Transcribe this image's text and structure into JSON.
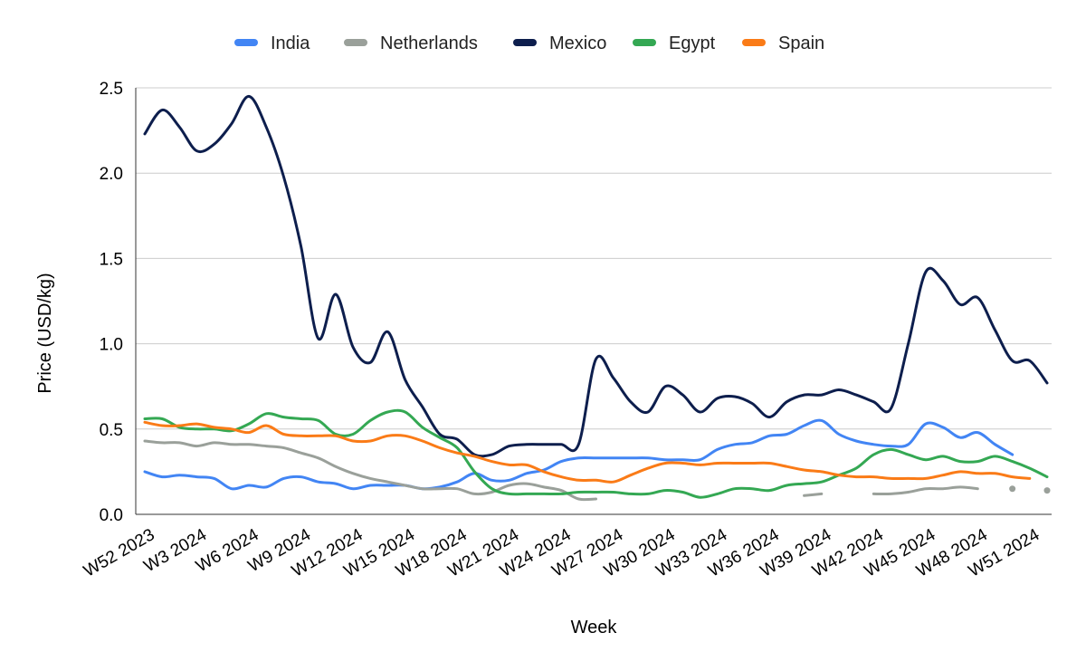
{
  "chart_data": {
    "type": "line",
    "title": "",
    "xlabel": "Week",
    "ylabel": "Price (USD/kg)",
    "ylim": [
      0,
      2.5
    ],
    "yticks": [
      0.0,
      0.5,
      1.0,
      1.5,
      2.0,
      2.5
    ],
    "ytick_labels": [
      "0.0",
      "0.5",
      "1.0",
      "1.5",
      "2.0",
      "2.5"
    ],
    "grid": true,
    "legend_position": "top",
    "categories": [
      "W52 2023",
      "W1 2024",
      "W2 2024",
      "W3 2024",
      "W4 2024",
      "W5 2024",
      "W6 2024",
      "W7 2024",
      "W8 2024",
      "W9 2024",
      "W10 2024",
      "W11 2024",
      "W12 2024",
      "W13 2024",
      "W14 2024",
      "W15 2024",
      "W16 2024",
      "W17 2024",
      "W18 2024",
      "W19 2024",
      "W20 2024",
      "W21 2024",
      "W22 2024",
      "W23 2024",
      "W24 2024",
      "W25 2024",
      "W26 2024",
      "W27 2024",
      "W28 2024",
      "W29 2024",
      "W30 2024",
      "W31 2024",
      "W32 2024",
      "W33 2024",
      "W34 2024",
      "W35 2024",
      "W36 2024",
      "W37 2024",
      "W38 2024",
      "W39 2024",
      "W40 2024",
      "W41 2024",
      "W42 2024",
      "W43 2024",
      "W44 2024",
      "W45 2024",
      "W46 2024",
      "W47 2024",
      "W48 2024",
      "W49 2024",
      "W50 2024",
      "W51 2024",
      "W52 2024"
    ],
    "xtick_labels": [
      "W52 2023",
      "W3 2024",
      "W6 2024",
      "W9 2024",
      "W12 2024",
      "W15 2024",
      "W18 2024",
      "W21 2024",
      "W24 2024",
      "W27 2024",
      "W30 2024",
      "W33 2024",
      "W36 2024",
      "W39 2024",
      "W42 2024",
      "W45 2024",
      "W48 2024",
      "W51 2024"
    ],
    "series": [
      {
        "name": "India",
        "color": "#4285f4",
        "values": [
          0.25,
          0.22,
          0.23,
          0.22,
          0.21,
          0.15,
          0.17,
          0.16,
          0.21,
          0.22,
          0.19,
          0.18,
          0.15,
          0.17,
          0.17,
          0.17,
          0.15,
          0.16,
          0.19,
          0.24,
          0.2,
          0.2,
          0.24,
          0.26,
          0.31,
          0.33,
          0.33,
          0.33,
          0.33,
          0.33,
          0.32,
          0.32,
          0.32,
          0.38,
          0.41,
          0.42,
          0.46,
          0.47,
          0.52,
          0.55,
          0.47,
          0.43,
          0.41,
          0.4,
          0.41,
          0.53,
          0.51,
          0.45,
          0.48,
          0.41,
          0.35,
          null,
          null
        ]
      },
      {
        "name": "Netherlands",
        "color": "#9aa09a",
        "values": [
          0.43,
          0.42,
          0.42,
          0.4,
          0.42,
          0.41,
          0.41,
          0.4,
          0.39,
          0.36,
          0.33,
          0.28,
          0.24,
          0.21,
          0.19,
          0.17,
          0.15,
          0.15,
          0.15,
          0.12,
          0.13,
          0.17,
          0.18,
          0.16,
          0.14,
          0.09,
          0.09,
          null,
          null,
          null,
          null,
          null,
          null,
          null,
          null,
          null,
          null,
          null,
          0.11,
          0.12,
          null,
          null,
          0.12,
          0.12,
          0.13,
          0.15,
          0.15,
          0.16,
          0.15,
          null,
          0.15,
          null,
          0.14
        ]
      },
      {
        "name": "Mexico",
        "color": "#0d1e4d",
        "values": [
          2.23,
          2.37,
          2.27,
          2.13,
          2.17,
          2.29,
          2.45,
          2.27,
          1.98,
          1.57,
          1.03,
          1.29,
          0.98,
          0.89,
          1.07,
          0.79,
          0.63,
          0.47,
          0.44,
          0.35,
          0.35,
          0.4,
          0.41,
          0.41,
          0.41,
          0.41,
          0.91,
          0.8,
          0.66,
          0.6,
          0.75,
          0.7,
          0.6,
          0.68,
          0.69,
          0.65,
          0.57,
          0.66,
          0.7,
          0.7,
          0.73,
          0.7,
          0.66,
          0.62,
          1.0,
          1.42,
          1.37,
          1.23,
          1.27,
          1.08,
          0.9,
          0.9,
          0.77
        ]
      },
      {
        "name": "Egypt",
        "color": "#34a853",
        "values": [
          0.56,
          0.56,
          0.51,
          0.5,
          0.5,
          0.49,
          0.53,
          0.59,
          0.57,
          0.56,
          0.55,
          0.47,
          0.47,
          0.55,
          0.6,
          0.6,
          0.51,
          0.45,
          0.39,
          0.25,
          0.15,
          0.12,
          0.12,
          0.12,
          0.12,
          0.13,
          0.13,
          0.13,
          0.12,
          0.12,
          0.14,
          0.13,
          0.1,
          0.12,
          0.15,
          0.15,
          0.14,
          0.17,
          0.18,
          0.19,
          0.23,
          0.27,
          0.35,
          0.38,
          0.35,
          0.32,
          0.34,
          0.31,
          0.31,
          0.34,
          0.31,
          0.27,
          0.22
        ]
      },
      {
        "name": "Spain",
        "color": "#fa7b17",
        "values": [
          0.54,
          0.52,
          0.52,
          0.53,
          0.51,
          0.5,
          0.48,
          0.52,
          0.47,
          0.46,
          0.46,
          0.46,
          0.43,
          0.43,
          0.46,
          0.46,
          0.43,
          0.39,
          0.36,
          0.34,
          0.31,
          0.29,
          0.29,
          0.25,
          0.22,
          0.2,
          0.2,
          0.19,
          0.23,
          0.27,
          0.3,
          0.3,
          0.29,
          0.3,
          0.3,
          0.3,
          0.3,
          0.28,
          0.26,
          0.25,
          0.23,
          0.22,
          0.22,
          0.21,
          0.21,
          0.21,
          0.23,
          0.25,
          0.24,
          0.24,
          0.22,
          0.21,
          null
        ]
      }
    ]
  }
}
